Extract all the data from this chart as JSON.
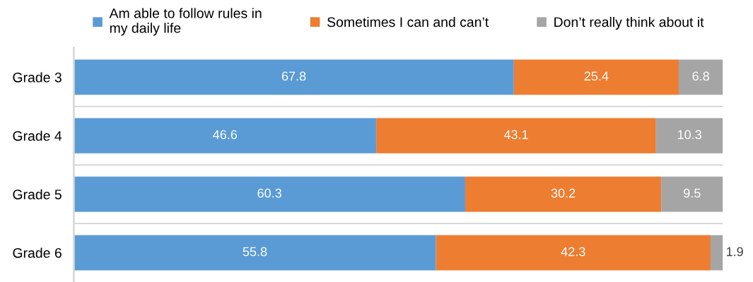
{
  "chart_data": {
    "type": "bar",
    "orientation": "horizontal",
    "stacked": true,
    "categories": [
      "Grade 3",
      "Grade 4",
      "Grade 5",
      "Grade 6"
    ],
    "series": [
      {
        "name": "Am able to follow rules in my daily life",
        "color": "#5b9bd5",
        "values": [
          67.8,
          46.6,
          60.3,
          55.8
        ]
      },
      {
        "name": "Sometimes I can and can’t",
        "color": "#ed7d31",
        "values": [
          25.4,
          43.1,
          30.2,
          42.3
        ]
      },
      {
        "name": "Don’t really think about it",
        "color": "#a5a5a5",
        "values": [
          6.8,
          10.3,
          9.5,
          1.9
        ]
      }
    ],
    "xlim": [
      0,
      100
    ],
    "tick_labels": "y",
    "data_labels": true,
    "grid": "y",
    "legend": "top"
  }
}
